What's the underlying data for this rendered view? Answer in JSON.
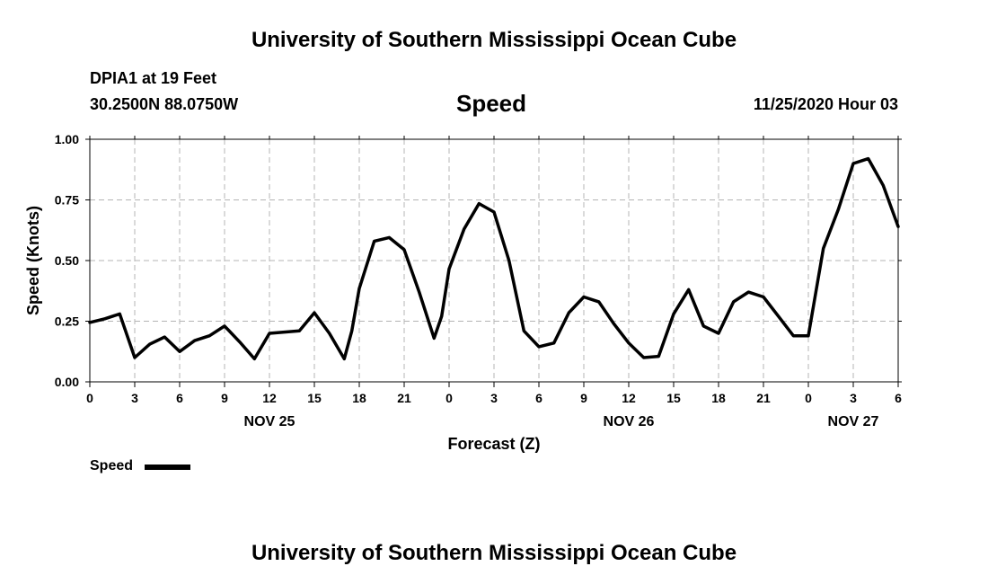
{
  "header": {
    "title_top": "University of Southern Mississippi Ocean Cube",
    "station": "DPIA1 at 19 Feet",
    "coords": "30.2500N 88.0750W",
    "timestamp": "11/25/2020 Hour 03",
    "title_bottom": "University of Southern Mississippi Ocean Cube"
  },
  "chart_data": {
    "type": "line",
    "title": "Speed",
    "xlabel": "Forecast (Z)",
    "ylabel": "Speed (Knots)",
    "ylim": [
      0,
      1
    ],
    "y_ticks": [
      "0.00",
      "0.25",
      "0.50",
      "0.75",
      "1.00"
    ],
    "xlim": [
      0,
      54
    ],
    "x_ticks": [
      "0",
      "3",
      "6",
      "9",
      "12",
      "15",
      "18",
      "21",
      "0",
      "3",
      "6",
      "9",
      "12",
      "15",
      "18",
      "21",
      "0",
      "3",
      "6"
    ],
    "date_labels": [
      "NOV 25",
      "NOV 26",
      "NOV 27"
    ],
    "grid": true,
    "legend": "bottom-left",
    "series": [
      {
        "name": "Speed",
        "color": "#000000",
        "x": [
          0,
          1,
          2,
          3,
          4,
          5,
          6,
          7,
          8,
          9,
          10,
          11,
          12,
          13,
          14,
          15,
          16,
          17,
          17.5,
          18,
          19,
          20,
          21,
          22,
          23,
          23.5,
          24,
          25,
          26,
          27,
          28,
          29,
          30,
          31,
          32,
          33,
          34,
          35,
          36,
          37,
          38,
          39,
          40,
          41,
          42,
          43,
          44,
          45,
          46,
          47,
          48,
          49,
          50,
          51,
          52,
          53,
          54
        ],
        "y": [
          0.245,
          0.26,
          0.28,
          0.1,
          0.155,
          0.185,
          0.125,
          0.17,
          0.19,
          0.23,
          0.165,
          0.095,
          0.2,
          0.205,
          0.21,
          0.285,
          0.2,
          0.095,
          0.21,
          0.385,
          0.58,
          0.595,
          0.545,
          0.37,
          0.18,
          0.27,
          0.465,
          0.63,
          0.735,
          0.7,
          0.5,
          0.21,
          0.145,
          0.16,
          0.285,
          0.35,
          0.33,
          0.24,
          0.16,
          0.1,
          0.105,
          0.28,
          0.38,
          0.23,
          0.2,
          0.33,
          0.37,
          0.35,
          0.27,
          0.19,
          0.19,
          0.55,
          0.71,
          0.9,
          0.92,
          0.81,
          0.64
        ]
      }
    ]
  },
  "legend": {
    "label": "Speed"
  }
}
